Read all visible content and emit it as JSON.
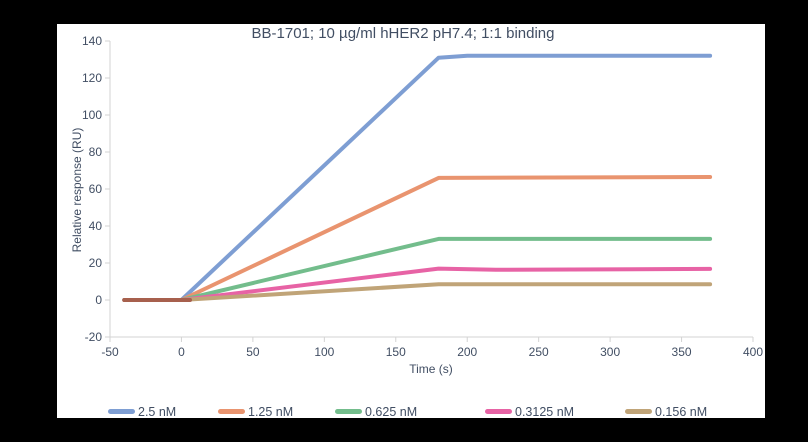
{
  "chart_data": {
    "type": "line",
    "title": "BB-1701; 10 µg/ml hHER2 pH7.4; 1:1 binding",
    "xlabel": "Time (s)",
    "ylabel": "Relative response (RU)",
    "xlim": [
      -50,
      400
    ],
    "ylim": [
      -20,
      140
    ],
    "xticks": [
      -50,
      0,
      50,
      100,
      150,
      200,
      250,
      300,
      350,
      400
    ],
    "yticks": [
      -20,
      0,
      20,
      40,
      60,
      80,
      100,
      120,
      140
    ],
    "grid": false,
    "legend_position": "bottom",
    "axis_color": "#d3d3d3",
    "text_color": "#414e63",
    "background_color": "#ffffff",
    "baseline_overlap_color": "#a7604d",
    "series": [
      {
        "name": "2.5 nM",
        "color": "#7e9ed3",
        "points": [
          [
            -40,
            0
          ],
          [
            0,
            0
          ],
          [
            180,
            131
          ],
          [
            200,
            132
          ],
          [
            370,
            132
          ]
        ]
      },
      {
        "name": "1.25 nM",
        "color": "#e9946f",
        "points": [
          [
            -40,
            0
          ],
          [
            0,
            0
          ],
          [
            180,
            66
          ],
          [
            370,
            66.5
          ]
        ]
      },
      {
        "name": "0.625 nM",
        "color": "#73bd8c",
        "points": [
          [
            -40,
            0
          ],
          [
            0,
            0
          ],
          [
            180,
            33
          ],
          [
            370,
            33
          ]
        ]
      },
      {
        "name": "0.3125 nM",
        "color": "#e763a5",
        "points": [
          [
            -40,
            0
          ],
          [
            0,
            0
          ],
          [
            180,
            17
          ],
          [
            220,
            16.3
          ],
          [
            370,
            16.8
          ]
        ]
      },
      {
        "name": "0.156 nM",
        "color": "#c0a478",
        "points": [
          [
            -40,
            0
          ],
          [
            0,
            0
          ],
          [
            180,
            8.5
          ],
          [
            370,
            8.5
          ]
        ]
      }
    ]
  }
}
